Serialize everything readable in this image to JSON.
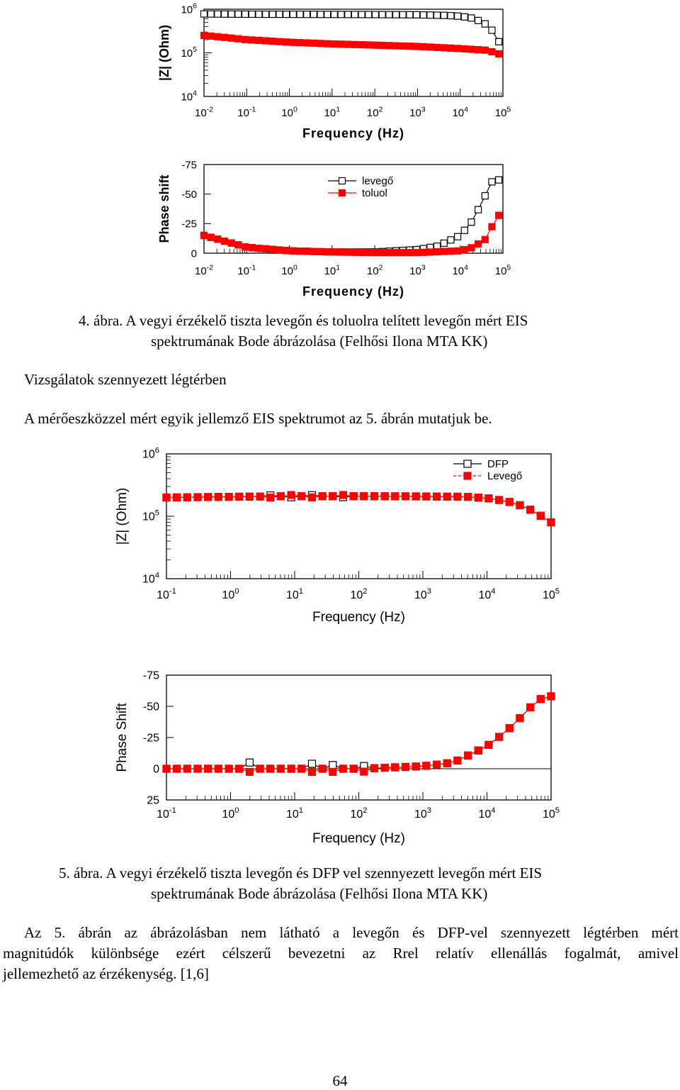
{
  "figure4": {
    "top_ylabel": "|Z| (Ohm)",
    "top_yticks": [
      "10^6",
      "10^5",
      "10^4"
    ],
    "bottom_ylabel": "Phase shift",
    "bottom_yticks": [
      "-75",
      "-50",
      "-25",
      "0"
    ],
    "xticks": [
      "10^-2",
      "10^-1",
      "10^0",
      "10^1",
      "10^2",
      "10^3",
      "10^4",
      "10^5"
    ],
    "xlabel": "Frequency (Hz)",
    "legend": [
      "levegő",
      "toluol"
    ],
    "caption_num": "4.   ábra.",
    "caption_line1": "A vegyi érzékelő tiszta levegőn és toluolra telített levegőn mért EIS",
    "caption_line2": "spektrumának Bode ábrázolása (Felhősi Ilona MTA KK)"
  },
  "text": {
    "heading": "Vizsgálatok szennyezett légtérben",
    "sentence": "A mérőeszközzel mért egyik jellemző EIS spektrumot az 5. ábrán mutatjuk be."
  },
  "figure5": {
    "top_ylabel": "|Z| (Ohm)",
    "top_yticks": [
      "10^6",
      "10^5",
      "10^4"
    ],
    "bottom_ylabel": "Phase Shift",
    "bottom_yticks": [
      "-75",
      "-50",
      "-25",
      "0",
      "25"
    ],
    "xticks": [
      "10^-1",
      "10^0",
      "10^1",
      "10^2",
      "10^3",
      "10^4",
      "10^5"
    ],
    "xlabel": "Frequency (Hz)",
    "legend": [
      "DFP",
      "Levegő"
    ],
    "caption_num": "5.   ábra.",
    "caption_line1": "A vegyi érzékelő tiszta levegőn és DFP vel szennyezett levegőn mért EIS",
    "caption_line2": "spektrumának Bode ábrázolása (Felhősi Ilona MTA KK)"
  },
  "closing": {
    "line1": "Az 5. ábrán az ábrázolásban nem látható a levegőn és DFP-vel szennyezett légtérben mért",
    "line2": "magnitúdók különbsége ezért célszerű bevezetni az Rrel relatív ellenállás fogalmát, amivel",
    "line3": "jellemezhető az érzékenység. [1,6]"
  },
  "page_number": "64",
  "chart_data": [
    {
      "type": "line",
      "panel": "Figure 4 top",
      "xscale": "log",
      "yscale": "log",
      "xlim": [
        0.01,
        100000
      ],
      "ylim": [
        10000,
        1000000
      ],
      "xlabel": "Frequency (Hz)",
      "ylabel": "|Z| (Ohm)",
      "series": [
        {
          "name": "levegő",
          "marker": "open-square",
          "x": [
            0.01,
            0.1,
            1,
            10,
            100,
            1000,
            5000,
            10000,
            20000,
            40000,
            60000,
            80000
          ],
          "y": [
            780000,
            770000,
            765000,
            760000,
            755000,
            745000,
            720000,
            690000,
            620000,
            450000,
            300000,
            180000
          ]
        },
        {
          "name": "toluol",
          "marker": "filled-square",
          "x": [
            0.01,
            0.1,
            1,
            10,
            100,
            1000,
            10000,
            40000,
            80000
          ],
          "y": [
            250000,
            200000,
            175000,
            160000,
            150000,
            140000,
            125000,
            115000,
            95000
          ]
        }
      ]
    },
    {
      "type": "line",
      "panel": "Figure 4 bottom",
      "xscale": "log",
      "xlim": [
        0.01,
        100000
      ],
      "ylim": [
        0,
        -75
      ],
      "xlabel": "Frequency (Hz)",
      "ylabel": "Phase shift",
      "legend_position": "top-center",
      "series": [
        {
          "name": "levegő",
          "marker": "open-square",
          "x": [
            0.01,
            0.1,
            1,
            10,
            100,
            1000,
            3000,
            10000,
            20000,
            40000,
            60000,
            80000
          ],
          "y": [
            -15,
            -5,
            -2,
            -1,
            -1,
            -3,
            -6,
            -15,
            -28,
            -50,
            -63,
            -62
          ]
        },
        {
          "name": "toluol",
          "marker": "filled-square",
          "x": [
            0.01,
            0.1,
            1,
            10,
            100,
            1000,
            10000,
            20000,
            40000,
            60000,
            80000
          ],
          "y": [
            -15,
            -5,
            -2,
            -1,
            -0.5,
            -0.5,
            -2,
            -5,
            -12,
            -25,
            -32
          ]
        }
      ]
    },
    {
      "type": "line",
      "panel": "Figure 5 top",
      "xscale": "log",
      "yscale": "log",
      "xlim": [
        0.1,
        100000
      ],
      "ylim": [
        10000,
        1000000
      ],
      "xlabel": "Frequency (Hz)",
      "ylabel": "|Z| (Ohm)",
      "legend_position": "top-right",
      "series": [
        {
          "name": "DFP",
          "marker": "open-square",
          "x": [
            0.1,
            1,
            10,
            100,
            1000,
            5000,
            10000,
            20000,
            40000,
            60000,
            100000
          ],
          "y": [
            200000,
            205000,
            210000,
            210000,
            208000,
            205000,
            195000,
            175000,
            140000,
            110000,
            80000
          ]
        },
        {
          "name": "Levegő",
          "marker": "filled-square",
          "x": [
            0.1,
            1,
            10,
            100,
            1000,
            5000,
            10000,
            20000,
            40000,
            60000,
            100000
          ],
          "y": [
            200000,
            205000,
            210000,
            210000,
            208000,
            205000,
            195000,
            175000,
            140000,
            110000,
            80000
          ]
        }
      ]
    },
    {
      "type": "line",
      "panel": "Figure 5 bottom",
      "xscale": "log",
      "xlim": [
        0.1,
        100000
      ],
      "ylim": [
        25,
        -75
      ],
      "xlabel": "Frequency (Hz)",
      "ylabel": "Phase Shift",
      "series": [
        {
          "name": "DFP",
          "marker": "open-square",
          "x": [
            0.1,
            1,
            10,
            100,
            1000,
            3000,
            10000,
            20000,
            40000,
            60000,
            100000
          ],
          "y": [
            0,
            0,
            0,
            0,
            -2,
            -5,
            -18,
            -30,
            -45,
            -55,
            -58
          ]
        },
        {
          "name": "Levegő",
          "marker": "filled-square",
          "x": [
            0.1,
            1,
            10,
            100,
            1000,
            3000,
            10000,
            20000,
            40000,
            60000,
            100000
          ],
          "y": [
            0,
            0,
            0,
            0,
            -2,
            -5,
            -18,
            -30,
            -45,
            -55,
            -58
          ]
        }
      ]
    }
  ]
}
